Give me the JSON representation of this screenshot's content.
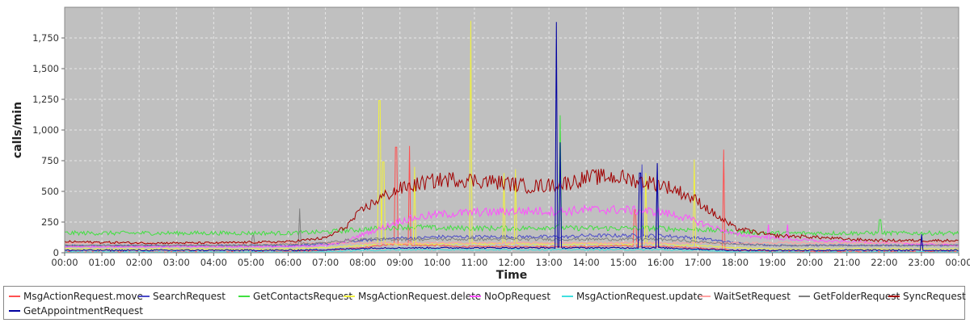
{
  "chart_data": {
    "type": "line",
    "title": "",
    "xlabel": "Time",
    "ylabel": "calls/min",
    "ylim": [
      0,
      2000
    ],
    "xlim_hours": [
      0,
      24
    ],
    "yticks": [
      0,
      250,
      500,
      750,
      1000,
      1250,
      1500,
      1750
    ],
    "ytick_labels": [
      "0",
      "250",
      "500",
      "750",
      "1,000",
      "1,250",
      "1,500",
      "1,750"
    ],
    "xtick_labels": [
      "00:00",
      "01:00",
      "02:00",
      "03:00",
      "04:00",
      "05:00",
      "06:00",
      "07:00",
      "08:00",
      "09:00",
      "10:00",
      "11:00",
      "12:00",
      "13:00",
      "14:00",
      "15:00",
      "16:00",
      "17:00",
      "18:00",
      "19:00",
      "20:00",
      "21:00",
      "22:00",
      "23:00",
      "00:00"
    ],
    "grid": true,
    "plot_background": "#c0c0c0",
    "grid_color": "#e8e8e8",
    "legend_position": "bottom",
    "x_hours": [
      0,
      1,
      2,
      3,
      4,
      5,
      6,
      7,
      7.5,
      8,
      8.5,
      9,
      9.5,
      10,
      10.5,
      11,
      11.5,
      12,
      12.5,
      13,
      13.5,
      14,
      14.5,
      15,
      15.5,
      16,
      16.5,
      17,
      17.5,
      18,
      19,
      20,
      21,
      22,
      23,
      24
    ],
    "series": [
      {
        "name": "MsgActionRequest.move",
        "color": "#ff5050",
        "values": [
          5,
          5,
          5,
          5,
          5,
          5,
          10,
          20,
          30,
          40,
          60,
          70,
          60,
          60,
          50,
          50,
          50,
          50,
          50,
          50,
          50,
          50,
          55,
          55,
          50,
          50,
          45,
          40,
          30,
          20,
          10,
          8,
          8,
          8,
          8,
          8
        ],
        "spikes": [
          [
            8.9,
            860
          ],
          [
            9.25,
            870
          ],
          [
            15.3,
            350
          ],
          [
            17.7,
            840
          ]
        ]
      },
      {
        "name": "SearchRequest",
        "color": "#4a4ac8",
        "values": [
          60,
          60,
          60,
          60,
          60,
          60,
          60,
          70,
          80,
          100,
          110,
          120,
          120,
          130,
          130,
          130,
          130,
          130,
          130,
          130,
          130,
          140,
          140,
          140,
          140,
          140,
          130,
          120,
          100,
          80,
          60,
          60,
          60,
          60,
          60,
          60
        ],
        "spikes": [
          [
            15.5,
            720
          ],
          [
            15.9,
            720
          ]
        ]
      },
      {
        "name": "GetContactsRequest",
        "color": "#40e040",
        "values": [
          160,
          160,
          160,
          160,
          160,
          160,
          160,
          170,
          180,
          190,
          200,
          210,
          210,
          200,
          200,
          200,
          200,
          200,
          200,
          210,
          200,
          200,
          200,
          200,
          200,
          200,
          190,
          190,
          180,
          170,
          160,
          160,
          160,
          160,
          160,
          160
        ],
        "spikes": [
          [
            13.3,
            1120
          ],
          [
            21.9,
            270
          ]
        ]
      },
      {
        "name": "MsgActionRequest.delete",
        "color": "#f0f040",
        "values": [
          30,
          30,
          30,
          30,
          30,
          30,
          30,
          40,
          50,
          60,
          70,
          70,
          70,
          70,
          70,
          70,
          70,
          70,
          70,
          70,
          70,
          70,
          70,
          70,
          70,
          70,
          60,
          60,
          50,
          40,
          30,
          30,
          30,
          30,
          30,
          30
        ],
        "spikes": [
          [
            8.45,
            1240
          ],
          [
            8.55,
            740
          ],
          [
            9.4,
            700
          ],
          [
            10.9,
            1890
          ],
          [
            11.8,
            650
          ],
          [
            12.1,
            680
          ],
          [
            15.6,
            650
          ],
          [
            16.9,
            760
          ]
        ]
      },
      {
        "name": "NoOpRequest",
        "color": "#ff50ff",
        "values": [
          50,
          50,
          50,
          50,
          50,
          50,
          50,
          60,
          90,
          150,
          200,
          260,
          290,
          310,
          320,
          330,
          330,
          340,
          340,
          340,
          340,
          350,
          350,
          350,
          340,
          330,
          300,
          250,
          200,
          150,
          120,
          100,
          90,
          80,
          70,
          60
        ],
        "spikes": [
          [
            18.9,
            230
          ],
          [
            19.4,
            230
          ]
        ]
      },
      {
        "name": "MsgActionRequest.update",
        "color": "#40e0e0",
        "values": [
          5,
          5,
          5,
          5,
          5,
          5,
          5,
          10,
          15,
          20,
          20,
          25,
          25,
          25,
          25,
          25,
          25,
          25,
          25,
          25,
          25,
          25,
          25,
          25,
          25,
          25,
          20,
          20,
          15,
          10,
          5,
          5,
          5,
          5,
          5,
          5
        ],
        "spikes": []
      },
      {
        "name": "WaitSetRequest",
        "color": "#ffa0a0",
        "values": [
          80,
          80,
          80,
          80,
          80,
          80,
          80,
          80,
          80,
          80,
          80,
          80,
          80,
          80,
          80,
          80,
          80,
          80,
          80,
          80,
          80,
          80,
          80,
          80,
          80,
          80,
          80,
          80,
          80,
          80,
          80,
          80,
          80,
          80,
          80,
          80
        ],
        "spikes": []
      },
      {
        "name": "GetFolderRequest",
        "color": "#808080",
        "values": [
          60,
          60,
          60,
          60,
          60,
          60,
          70,
          80,
          100,
          110,
          110,
          110,
          110,
          110,
          110,
          110,
          110,
          110,
          110,
          110,
          110,
          110,
          110,
          110,
          110,
          110,
          100,
          90,
          80,
          70,
          60,
          60,
          60,
          60,
          60,
          60
        ],
        "spikes": [
          [
            5.05,
            140
          ],
          [
            6.3,
            360
          ]
        ]
      },
      {
        "name": "SyncRequest",
        "color": "#a00000",
        "values": [
          90,
          85,
          80,
          80,
          80,
          85,
          90,
          120,
          200,
          350,
          450,
          520,
          560,
          590,
          600,
          590,
          580,
          560,
          540,
          550,
          570,
          610,
          620,
          610,
          580,
          560,
          500,
          420,
          300,
          200,
          140,
          130,
          110,
          100,
          100,
          100
        ],
        "spikes": []
      },
      {
        "name": "GetAppointmentRequest",
        "color": "#0000a0",
        "values": [
          20,
          20,
          20,
          20,
          20,
          20,
          20,
          25,
          30,
          35,
          40,
          40,
          40,
          40,
          40,
          40,
          40,
          40,
          40,
          40,
          40,
          40,
          40,
          40,
          40,
          40,
          35,
          30,
          25,
          20,
          20,
          20,
          20,
          20,
          20,
          20
        ],
        "spikes": [
          [
            13.2,
            1880
          ],
          [
            13.3,
            900
          ],
          [
            15.45,
            650
          ],
          [
            15.9,
            730
          ],
          [
            23.0,
            150
          ]
        ]
      }
    ]
  }
}
